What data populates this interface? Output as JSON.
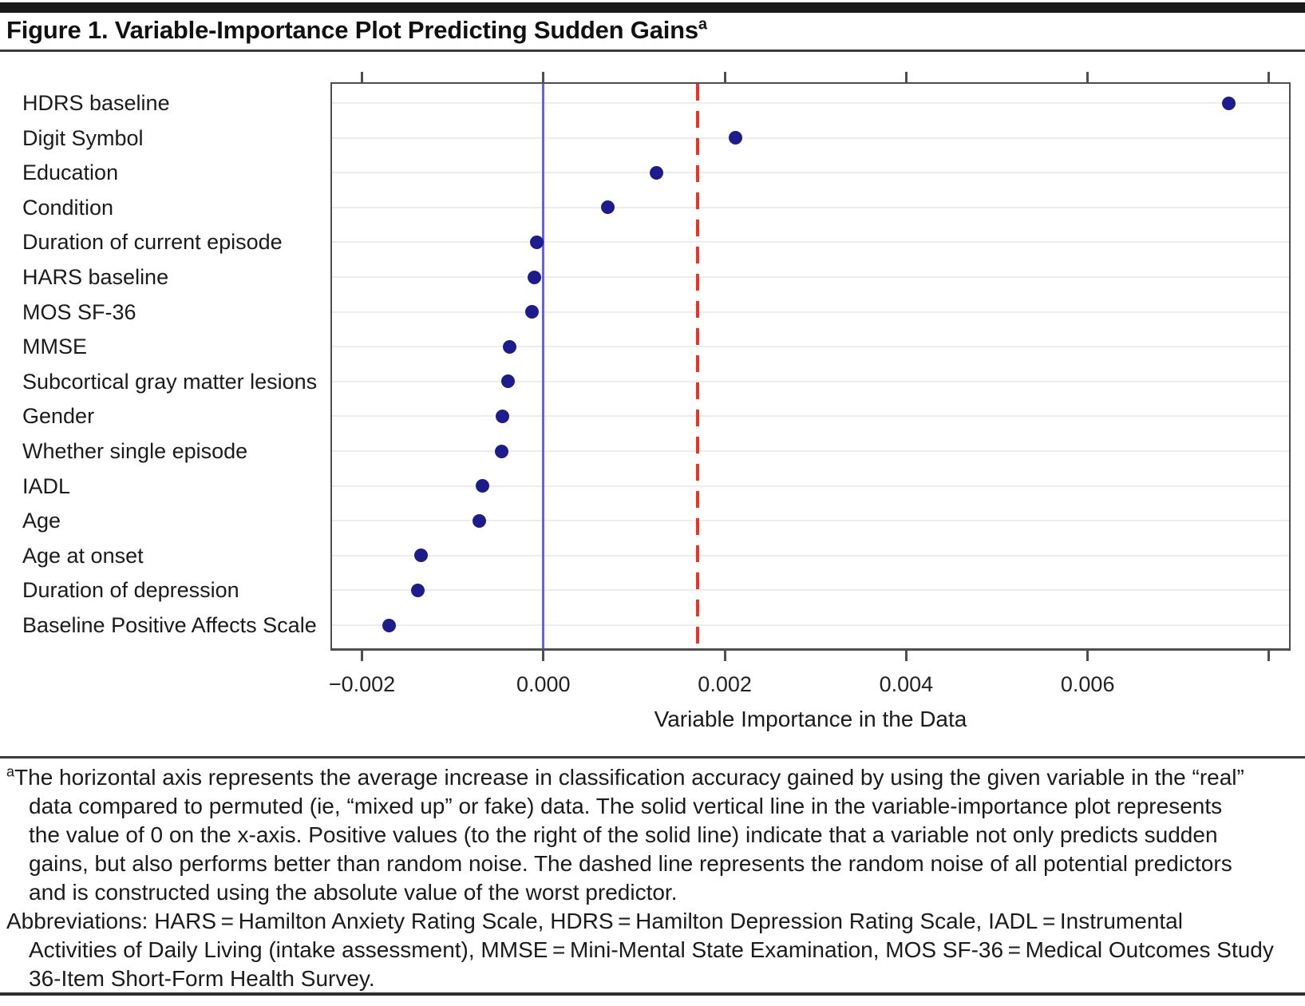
{
  "header": {
    "title": "Figure 1. Variable-Importance Plot Predicting Sudden Gains",
    "superscript": "a"
  },
  "chart_data": {
    "type": "scatter",
    "subtype": "horizontal-dot-plot",
    "title": "Figure 1. Variable-Importance Plot Predicting Sudden Gains",
    "xlabel": "Variable Importance in the Data",
    "ylabel": "",
    "xlim": [
      -0.00233,
      0.00822
    ],
    "x_ticks": [
      -0.002,
      0.0,
      0.002,
      0.004,
      0.006,
      0.008
    ],
    "x_tick_labels": [
      "−0.002",
      "0.000",
      "0.002",
      "0.004",
      "0.006",
      ""
    ],
    "grid": "horizontal light gridline per category row",
    "legend": "none",
    "point_color": "#1c1c8f",
    "categories": [
      "HDRS baseline",
      "Digit Symbol",
      "Education",
      "Condition",
      "Duration of current episode",
      "HARS baseline",
      "MOS SF-36",
      "MMSE",
      "Subcortical gray matter lesions",
      "Gender",
      "Whether single episode",
      "IADL",
      "Age",
      "Age at onset",
      "Duration of depression",
      "Baseline Positive Affects Scale"
    ],
    "values": [
      0.00756,
      0.00212,
      0.00125,
      0.00071,
      -7e-05,
      -0.0001,
      -0.00013,
      -0.00037,
      -0.00039,
      -0.00045,
      -0.00046,
      -0.00067,
      -0.00071,
      -0.00135,
      -0.00138,
      -0.0017
    ],
    "reference_lines": [
      {
        "style": "solid",
        "x": 0.0,
        "color": "#6262e6",
        "meaning": "value of 0 on the x-axis"
      },
      {
        "style": "dashed",
        "x": 0.0017,
        "color": "#ee3322",
        "meaning": "random noise of all potential predictors (absolute value of worst predictor)"
      }
    ]
  },
  "footnote": {
    "marker": "a",
    "lines": [
      {
        "text": "The horizontal axis represents the average increase in classification accuracy gained by using the given variable in the “real”",
        "indent": false,
        "has_marker": true
      },
      {
        "text": "data compared to permuted (ie, “mixed up” or fake) data. The solid vertical line in the variable-importance plot represents",
        "indent": true,
        "has_marker": false
      },
      {
        "text": "the value of 0 on the x-axis. Positive values (to the right of the solid line) indicate that a variable not only predicts sudden",
        "indent": true,
        "has_marker": false
      },
      {
        "text": "gains, but also performs better than random noise. The dashed line represents the random noise of all potential predictors",
        "indent": true,
        "has_marker": false
      },
      {
        "text": "and is constructed using the absolute value of the worst predictor.",
        "indent": true,
        "has_marker": false
      },
      {
        "text": "Abbreviations: HARS = Hamilton Anxiety Rating Scale, HDRS = Hamilton Depression Rating Scale, IADL = Instrumental",
        "indent": false,
        "has_marker": false
      },
      {
        "text": "Activities of Daily Living (intake assessment), MMSE = Mini-Mental State Examination, MOS SF-36 = Medical Outcomes Study",
        "indent": true,
        "has_marker": false
      },
      {
        "text": "36-Item Short-Form Health Survey.",
        "indent": true,
        "has_marker": false
      }
    ]
  }
}
